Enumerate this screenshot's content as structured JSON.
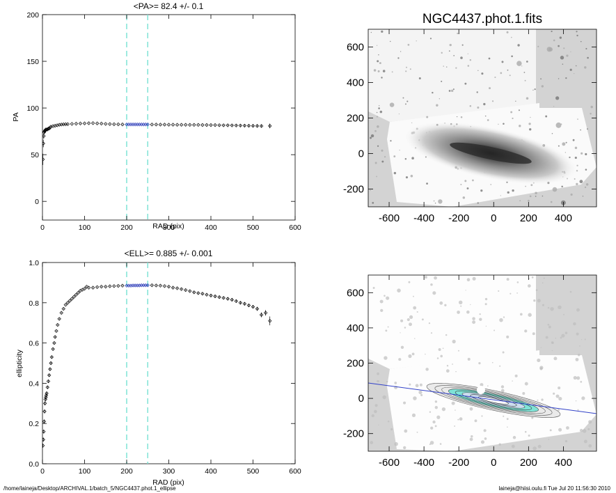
{
  "footer": {
    "path": "/home/laineja/Desktop/ARCHIVAL.1/batch_5/NGC4437.phot.1_ellipse",
    "user_stamp": "laineja@hiisi.oulu.fi  Tue Jul 20 11:56:30 2010"
  },
  "colors": {
    "profile_points": "#000000",
    "fit_range_points": "#1f2fb4",
    "fit_range_lines": "#7fe3d6",
    "image_background": "#d3d3d3",
    "major_axis_line": "#3040c8",
    "isophote_highlight": "#5fe0c8"
  },
  "chart_data": [
    {
      "type": "scatter",
      "title": "<PA>=  82.4 +/-   0.1",
      "xlabel": "RAD (pix)",
      "ylabel": "PA",
      "xlim": [
        0,
        600
      ],
      "ylim": [
        -20,
        200
      ],
      "xticks": [
        0,
        100,
        200,
        300,
        400,
        500,
        600
      ],
      "yticks": [
        0,
        50,
        100,
        150,
        200
      ],
      "grid": false,
      "fit_range": [
        200,
        250
      ],
      "x": [
        1,
        2,
        3,
        4,
        5,
        6,
        7,
        8,
        10,
        12,
        14,
        16,
        18,
        20,
        25,
        30,
        35,
        40,
        45,
        50,
        55,
        60,
        70,
        80,
        90,
        100,
        110,
        120,
        130,
        140,
        150,
        160,
        170,
        180,
        190,
        200,
        205,
        210,
        215,
        220,
        225,
        230,
        235,
        240,
        245,
        250,
        260,
        270,
        280,
        290,
        300,
        310,
        320,
        330,
        340,
        350,
        360,
        370,
        380,
        390,
        400,
        410,
        420,
        430,
        440,
        450,
        460,
        470,
        480,
        490,
        500,
        510,
        520,
        540
      ],
      "y": [
        45,
        62,
        70,
        74,
        75,
        76,
        76,
        77,
        77,
        77,
        78,
        78,
        79,
        80,
        80.5,
        81,
        81.5,
        82,
        82.3,
        82.5,
        82.6,
        82.7,
        83,
        83.2,
        83.4,
        83.5,
        83.7,
        83.8,
        83.5,
        83.3,
        83,
        82.8,
        82.6,
        82.5,
        82.4,
        82.4,
        82.4,
        82.4,
        82.4,
        82.4,
        82.4,
        82.4,
        82.4,
        82.4,
        82.4,
        82.4,
        82.3,
        82.3,
        82.2,
        82.2,
        82.1,
        82.1,
        82,
        82,
        82,
        81.9,
        81.9,
        81.9,
        81.8,
        81.8,
        81.7,
        81.7,
        81.6,
        81.5,
        81.5,
        81.4,
        81.3,
        81.2,
        81.1,
        81,
        80.9,
        80.8,
        80.7,
        80.8
      ],
      "yerr": [
        6,
        4,
        3,
        2,
        1,
        1,
        0.8,
        0.6,
        0.5,
        0.5,
        0.4,
        0.4,
        0.3,
        0.3,
        0.3,
        0.3,
        0.3,
        0.3,
        0.3,
        0.3,
        0.3,
        0.3,
        0.3,
        0.3,
        0.3,
        0.3,
        0.3,
        0.3,
        0.3,
        0.3,
        0.3,
        0.3,
        0.3,
        0.3,
        0.3,
        0.3,
        0.3,
        0.3,
        0.3,
        0.3,
        0.3,
        0.3,
        0.3,
        0.3,
        0.3,
        0.3,
        0.3,
        0.3,
        0.3,
        0.3,
        0.3,
        0.3,
        0.3,
        0.3,
        0.3,
        0.4,
        0.4,
        0.4,
        0.4,
        0.5,
        0.5,
        0.5,
        0.6,
        0.6,
        0.7,
        0.7,
        0.8,
        0.9,
        1,
        1,
        1.2,
        1.4,
        1.6,
        2.5
      ]
    },
    {
      "type": "scatter",
      "title": "<ELL>= 0.885 +/-  0.001",
      "xlabel": "RAD (pix)",
      "ylabel": "ellipticity",
      "xlim": [
        0,
        600
      ],
      "ylim": [
        0,
        1.0
      ],
      "xticks": [
        0,
        100,
        200,
        300,
        400,
        500,
        600
      ],
      "yticks": [
        0.0,
        0.2,
        0.4,
        0.6,
        0.8,
        1.0
      ],
      "grid": false,
      "fit_range": [
        200,
        250
      ],
      "x": [
        1,
        2,
        3,
        4,
        5,
        6,
        7,
        8,
        9,
        10,
        12,
        14,
        16,
        18,
        20,
        22,
        25,
        28,
        30,
        33,
        36,
        40,
        45,
        50,
        55,
        60,
        65,
        70,
        75,
        80,
        85,
        90,
        95,
        100,
        105,
        110,
        120,
        130,
        140,
        150,
        160,
        170,
        180,
        190,
        200,
        205,
        210,
        215,
        220,
        225,
        230,
        235,
        240,
        245,
        250,
        260,
        270,
        280,
        290,
        300,
        310,
        320,
        330,
        340,
        350,
        360,
        370,
        380,
        390,
        400,
        410,
        420,
        430,
        440,
        450,
        460,
        470,
        480,
        490,
        500,
        510,
        520,
        530,
        540
      ],
      "y": [
        0.09,
        0.12,
        0.16,
        0.21,
        0.26,
        0.3,
        0.32,
        0.33,
        0.34,
        0.35,
        0.38,
        0.41,
        0.44,
        0.47,
        0.5,
        0.53,
        0.57,
        0.6,
        0.63,
        0.66,
        0.69,
        0.72,
        0.75,
        0.77,
        0.79,
        0.8,
        0.81,
        0.82,
        0.83,
        0.84,
        0.85,
        0.86,
        0.865,
        0.87,
        0.88,
        0.875,
        0.875,
        0.878,
        0.88,
        0.88,
        0.882,
        0.883,
        0.884,
        0.885,
        0.885,
        0.885,
        0.885,
        0.886,
        0.886,
        0.886,
        0.886,
        0.887,
        0.887,
        0.887,
        0.887,
        0.887,
        0.886,
        0.885,
        0.883,
        0.88,
        0.875,
        0.872,
        0.868,
        0.863,
        0.858,
        0.852,
        0.848,
        0.845,
        0.84,
        0.836,
        0.832,
        0.828,
        0.824,
        0.82,
        0.815,
        0.808,
        0.8,
        0.795,
        0.787,
        0.78,
        0.77,
        0.74,
        0.75,
        0.71
      ],
      "yerr": [
        0.01,
        0.01,
        0.01,
        0.01,
        0.01,
        0.01,
        0.01,
        0.01,
        0.01,
        0.01,
        0.008,
        0.008,
        0.006,
        0.006,
        0.005,
        0.005,
        0.004,
        0.004,
        0.004,
        0.003,
        0.003,
        0.003,
        0.003,
        0.003,
        0.002,
        0.002,
        0.002,
        0.002,
        0.002,
        0.002,
        0.002,
        0.002,
        0.002,
        0.002,
        0.002,
        0.002,
        0.002,
        0.002,
        0.002,
        0.002,
        0.002,
        0.002,
        0.002,
        0.002,
        0.002,
        0.002,
        0.002,
        0.002,
        0.002,
        0.002,
        0.002,
        0.002,
        0.002,
        0.002,
        0.002,
        0.002,
        0.002,
        0.002,
        0.002,
        0.003,
        0.003,
        0.003,
        0.003,
        0.003,
        0.003,
        0.004,
        0.004,
        0.004,
        0.004,
        0.005,
        0.005,
        0.005,
        0.005,
        0.006,
        0.006,
        0.006,
        0.007,
        0.007,
        0.008,
        0.008,
        0.01,
        0.012,
        0.014,
        0.022
      ]
    },
    {
      "type": "image",
      "title": "NGC4437.phot.1.fits",
      "xlim": [
        -720,
        590
      ],
      "ylim": [
        -300,
        700
      ],
      "xticks": [
        -600,
        -400,
        -200,
        0,
        200,
        400
      ],
      "yticks": [
        -200,
        0,
        200,
        400,
        600
      ],
      "background": "light grey",
      "content": "greyscale galaxy image with edge-on disk along the major axis"
    },
    {
      "type": "image",
      "title": "",
      "xlim": [
        -720,
        590
      ],
      "ylim": [
        -300,
        700
      ],
      "xticks": [
        -600,
        -400,
        -200,
        0,
        200,
        400
      ],
      "yticks": [
        -200,
        0,
        200,
        400,
        600
      ],
      "background": "light grey",
      "content": "masked galaxy image with fitted elliptical isophotes and major axis line"
    }
  ]
}
